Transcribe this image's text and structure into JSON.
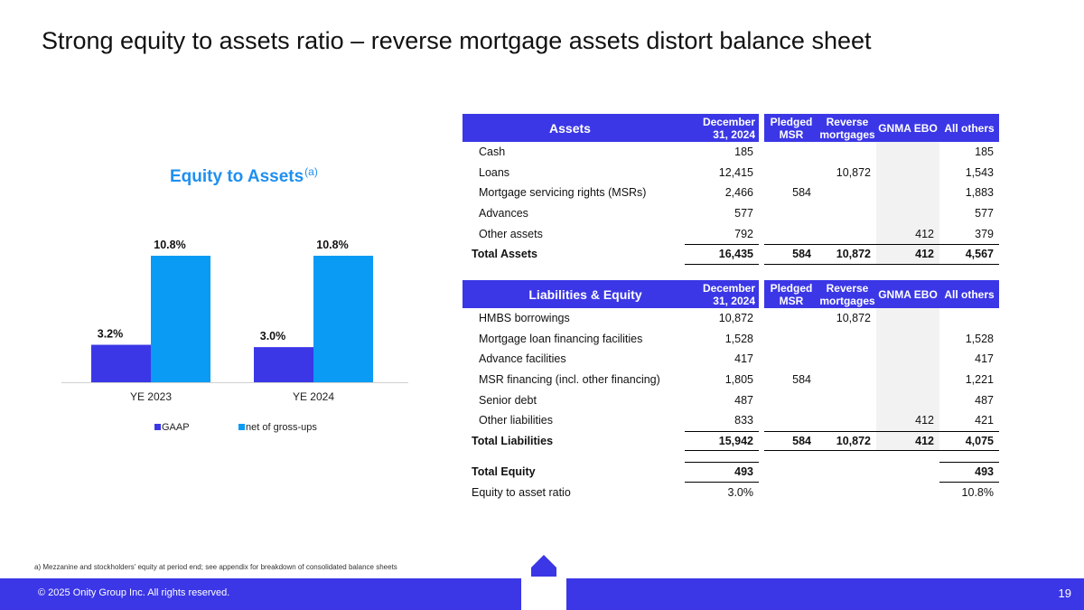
{
  "slide": {
    "title": "Strong equity to assets ratio – reverse mortgage assets distort balance sheet",
    "footnote": "a) Mezzanine and stockholders' equity at period end; see appendix for breakdown of consolidated balance sheets",
    "copyright": "© 2025 Onity Group Inc. All rights reserved.",
    "page_number": "19"
  },
  "chart_data": {
    "type": "bar",
    "title": "Equity to Assets",
    "title_superscript": "(a)",
    "categories": [
      "YE 2023",
      "YE 2024"
    ],
    "series": [
      {
        "name": "GAAP",
        "values": [
          3.2,
          3.0
        ],
        "labels": [
          "3.2%",
          "3.0%"
        ],
        "color": "#3b37e6"
      },
      {
        "name": "net of gross-ups",
        "values": [
          10.8,
          10.8
        ],
        "labels": [
          "10.8%",
          "10.8%"
        ],
        "color": "#0a9bf5"
      }
    ],
    "ylim": [
      0,
      12
    ],
    "grid": false,
    "legend": "bottom"
  },
  "assets_table": {
    "headers": [
      "Assets",
      "December 31, 2024",
      "Pledged MSR",
      "Reverse mortgages",
      "GNMA EBO",
      "All others"
    ],
    "rows": [
      {
        "label": "Cash",
        "dec": "185",
        "pm": "",
        "rm": "",
        "gn": "",
        "ao": "185"
      },
      {
        "label": "Loans",
        "dec": "12,415",
        "pm": "",
        "rm": "10,872",
        "gn": "",
        "ao": "1,543"
      },
      {
        "label": "Mortgage servicing rights (MSRs)",
        "dec": "2,466",
        "pm": "584",
        "rm": "",
        "gn": "",
        "ao": "1,883"
      },
      {
        "label": "Advances",
        "dec": "577",
        "pm": "",
        "rm": "",
        "gn": "",
        "ao": "577"
      },
      {
        "label": "Other assets",
        "dec": "792",
        "pm": "",
        "rm": "",
        "gn": "412",
        "ao": "379"
      }
    ],
    "total": {
      "label": "Total Assets",
      "dec": "16,435",
      "pm": "584",
      "rm": "10,872",
      "gn": "412",
      "ao": "4,567"
    }
  },
  "liabilities_table": {
    "headers": [
      "Liabilities & Equity",
      "December 31, 2024",
      "Pledged MSR",
      "Reverse mortgages",
      "GNMA EBO",
      "All others"
    ],
    "rows": [
      {
        "label": "HMBS borrowings",
        "dec": "10,872",
        "pm": "",
        "rm": "10,872",
        "gn": "",
        "ao": ""
      },
      {
        "label": "Mortgage loan financing facilities",
        "dec": "1,528",
        "pm": "",
        "rm": "",
        "gn": "",
        "ao": "1,528"
      },
      {
        "label": "Advance facilities",
        "dec": "417",
        "pm": "",
        "rm": "",
        "gn": "",
        "ao": "417"
      },
      {
        "label": "MSR financing (incl. other financing)",
        "dec": "1,805",
        "pm": "584",
        "rm": "",
        "gn": "",
        "ao": "1,221"
      },
      {
        "label": "Senior debt",
        "dec": "487",
        "pm": "",
        "rm": "",
        "gn": "",
        "ao": "487"
      },
      {
        "label": "Other liabilities",
        "dec": "833",
        "pm": "",
        "rm": "",
        "gn": "412",
        "ao": "421"
      }
    ],
    "total": {
      "label": "Total Liabilities",
      "dec": "15,942",
      "pm": "584",
      "rm": "10,872",
      "gn": "412",
      "ao": "4,075"
    },
    "equity": {
      "label": "Total Equity",
      "dec": "493",
      "pm": "",
      "rm": "",
      "gn": "",
      "ao": "493"
    },
    "ratio": {
      "label": "Equity to asset ratio",
      "dec": "3.0%",
      "pm": "",
      "rm": "",
      "gn": "",
      "ao": "10.8%"
    }
  }
}
